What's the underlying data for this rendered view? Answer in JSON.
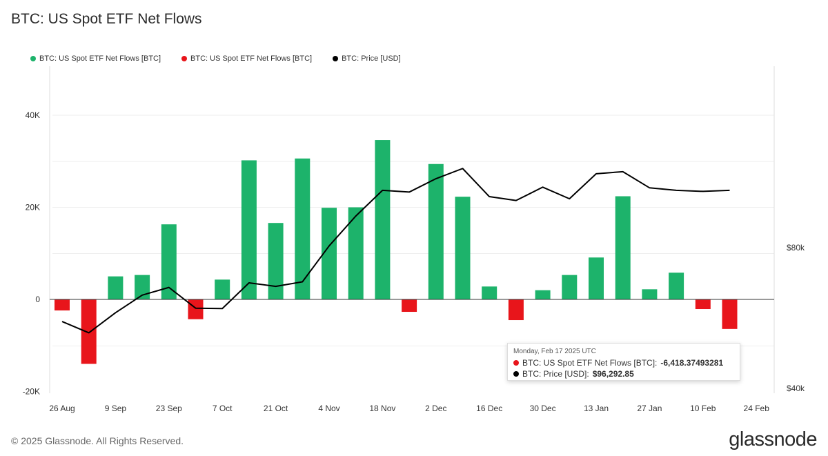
{
  "title": "BTC: US Spot ETF Net Flows",
  "legend": {
    "inflows": "BTC: US Spot ETF Net Flows [BTC]",
    "outflows": "BTC: US Spot ETF Net Flows [BTC]",
    "price": "BTC: Price [USD]"
  },
  "colors": {
    "inflow": "#1db36b",
    "outflow": "#e8151b",
    "price": "#000000",
    "grid": "#eeeeee",
    "zero_line": "#333333"
  },
  "tooltip": {
    "date": "Monday, Feb 17 2025 UTC",
    "flow_label": "BTC: US Spot ETF Net Flows [BTC]:",
    "flow_value": "-6,418.37493281",
    "price_label": "BTC: Price [USD]:",
    "price_value": "$96,292.85"
  },
  "footer": {
    "copyright": "© 2025 Glassnode. All Rights Reserved.",
    "logo": "glassnode"
  },
  "chart_data": {
    "type": "bar",
    "left_axis": {
      "ticks": [
        "40K",
        "20K",
        "0",
        "-20K"
      ],
      "tick_values": [
        40000,
        20000,
        0,
        -20000
      ],
      "ylim": [
        -20000,
        48000
      ]
    },
    "right_axis": {
      "ticks": [
        "$80k",
        "$40k"
      ],
      "tick_values": [
        80000,
        40000
      ],
      "ylim": [
        40000,
        106000
      ]
    },
    "x_ticks": [
      "26 Aug",
      "9 Sep",
      "23 Sep",
      "7 Oct",
      "21 Oct",
      "4 Nov",
      "18 Nov",
      "2 Dec",
      "16 Dec",
      "30 Dec",
      "13 Jan",
      "27 Jan",
      "10 Feb",
      "24 Feb"
    ],
    "grid": true,
    "legend_position": "top-left",
    "series": [
      {
        "name": "BTC: US Spot ETF Net Flows [BTC]",
        "type": "bar",
        "axis": "left",
        "values": [
          -2400,
          -14000,
          5000,
          5300,
          16300,
          -4300,
          4300,
          30200,
          16600,
          30600,
          19900,
          20000,
          34600,
          -2700,
          29400,
          22300,
          2800,
          -4500,
          2000,
          5300,
          9100,
          22400,
          2200,
          5800,
          -2100,
          -6418.37
        ]
      },
      {
        "name": "BTC: Price [USD]",
        "type": "line",
        "axis": "right",
        "values": [
          59000,
          55800,
          61500,
          66500,
          68700,
          62800,
          62700,
          70000,
          69000,
          70300,
          80500,
          89000,
          96300,
          95800,
          99600,
          102500,
          94500,
          93400,
          97200,
          93900,
          101000,
          101600,
          97000,
          96300,
          96000,
          96292.85
        ]
      }
    ]
  }
}
